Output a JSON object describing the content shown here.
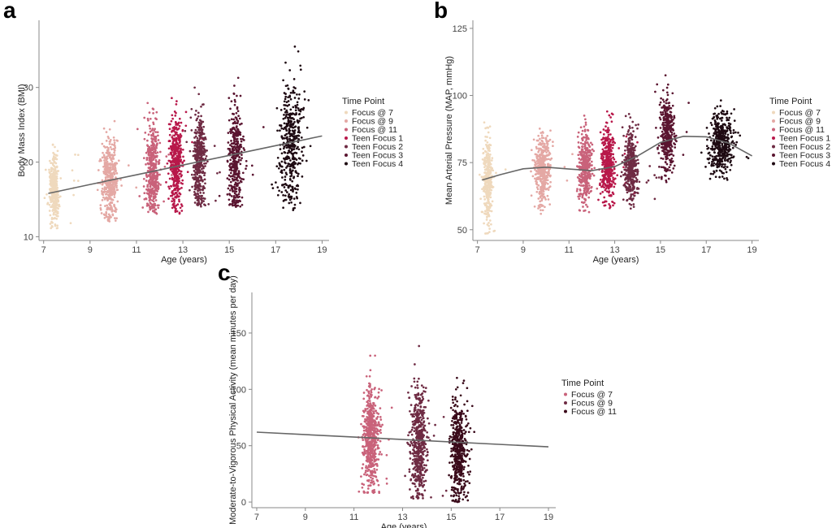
{
  "chart_data": [
    {
      "panel": "a",
      "type": "scatter",
      "xlabel": "Age (years)",
      "ylabel": "Body Mass Index (BMI)",
      "xlim": [
        6.8,
        19.3
      ],
      "ylim": [
        9.5,
        39
      ],
      "xticks": [
        7,
        9,
        11,
        13,
        15,
        17,
        19
      ],
      "yticks": [
        10,
        20,
        30
      ],
      "legend_title": "Time Point",
      "legend_placement": "right",
      "series": [
        {
          "name": "Focus @ 7",
          "color": "#efd9bd",
          "x_center": 7.45,
          "x_spread": 0.18,
          "y_mean": 16.5,
          "y_sd": 2.2,
          "y_min": 11,
          "y_max": 23,
          "n": 360
        },
        {
          "name": "Focus @ 9",
          "color": "#e4a8a4",
          "x_center": 9.85,
          "x_spread": 0.3,
          "y_mean": 17.5,
          "y_sd": 2.6,
          "y_min": 12,
          "y_max": 26,
          "n": 420
        },
        {
          "name": "Focus @ 11",
          "color": "#c9627a",
          "x_center": 11.7,
          "x_spread": 0.25,
          "y_mean": 19,
          "y_sd": 3.1,
          "y_min": 13,
          "y_max": 32,
          "n": 420
        },
        {
          "name": "Teen Focus 1",
          "color": "#b8184a",
          "x_center": 12.7,
          "x_spread": 0.25,
          "y_mean": 19.5,
          "y_sd": 3.2,
          "y_min": 13,
          "y_max": 32,
          "n": 420
        },
        {
          "name": "Teen Focus 2",
          "color": "#6e2b43",
          "x_center": 13.7,
          "x_spread": 0.25,
          "y_mean": 20,
          "y_sd": 3.4,
          "y_min": 14,
          "y_max": 34,
          "n": 380
        },
        {
          "name": "Teen Focus 3",
          "color": "#5a1530",
          "x_center": 15.25,
          "x_spread": 0.28,
          "y_mean": 20.5,
          "y_sd": 3.6,
          "y_min": 14,
          "y_max": 38.5,
          "n": 380
        },
        {
          "name": "Teen Focus 4",
          "color": "#1e0a12",
          "x_center": 17.65,
          "x_spread": 0.45,
          "y_mean": 22.5,
          "y_sd": 4.2,
          "y_min": 13.5,
          "y_max": 38,
          "n": 420
        }
      ],
      "trend": {
        "x": [
          7.2,
          9,
          11,
          13,
          15,
          17,
          19
        ],
        "y": [
          15.8,
          17.0,
          18.3,
          19.6,
          20.9,
          22.2,
          23.5
        ]
      }
    },
    {
      "panel": "b",
      "type": "scatter",
      "xlabel": "Age (years)",
      "ylabel": "Mean Arterial Pressure (MAP, mmHg)",
      "xlim": [
        6.8,
        19.3
      ],
      "ylim": [
        46,
        128
      ],
      "xticks": [
        7,
        9,
        11,
        13,
        15,
        17,
        19
      ],
      "yticks": [
        50,
        75,
        100,
        125
      ],
      "legend_title": "Time Point",
      "legend_placement": "right",
      "series": [
        {
          "name": "Focus @ 7",
          "color": "#efd9bd",
          "x_center": 7.45,
          "x_spread": 0.18,
          "y_mean": 68,
          "y_sd": 8,
          "y_min": 48,
          "y_max": 90,
          "n": 360
        },
        {
          "name": "Focus @ 9",
          "color": "#e4a8a4",
          "x_center": 9.85,
          "x_spread": 0.3,
          "y_mean": 73,
          "y_sd": 6.5,
          "y_min": 55,
          "y_max": 95,
          "n": 420
        },
        {
          "name": "Focus @ 11",
          "color": "#c9627a",
          "x_center": 11.7,
          "x_spread": 0.25,
          "y_mean": 73,
          "y_sd": 6.5,
          "y_min": 56,
          "y_max": 95,
          "n": 420
        },
        {
          "name": "Teen Focus 1",
          "color": "#b8184a",
          "x_center": 12.7,
          "x_spread": 0.25,
          "y_mean": 74,
          "y_sd": 6.5,
          "y_min": 58,
          "y_max": 104,
          "n": 420
        },
        {
          "name": "Teen Focus 2",
          "color": "#6e2b43",
          "x_center": 13.7,
          "x_spread": 0.25,
          "y_mean": 74,
          "y_sd": 6.5,
          "y_min": 55,
          "y_max": 94,
          "n": 380
        },
        {
          "name": "Teen Focus 3",
          "color": "#5a1530",
          "x_center": 15.3,
          "x_spread": 0.28,
          "y_mean": 86,
          "y_sd": 7,
          "y_min": 62,
          "y_max": 109,
          "n": 380
        },
        {
          "name": "Teen Focus 4",
          "color": "#1e0a12",
          "x_center": 17.65,
          "x_spread": 0.45,
          "y_mean": 82,
          "y_sd": 6,
          "y_min": 64,
          "y_max": 127,
          "n": 420
        }
      ],
      "trend": {
        "x": [
          7.2,
          8,
          9,
          10,
          11,
          12,
          13,
          14,
          15,
          16,
          17,
          18,
          19
        ],
        "y": [
          68.5,
          70.5,
          72.7,
          73.3,
          72.6,
          72.0,
          73.5,
          77.5,
          82.5,
          84.8,
          84.6,
          82.2,
          77.5
        ]
      }
    },
    {
      "panel": "c",
      "type": "scatter",
      "xlabel": "Age (years)",
      "ylabel": "Moderate-to-Vigorous Physical Activity (mean minutes per day)",
      "xlim": [
        6.8,
        19.3
      ],
      "ylim": [
        -5,
        186
      ],
      "xticks": [
        7,
        9,
        11,
        13,
        15,
        17,
        19
      ],
      "yticks": [
        0,
        50,
        100,
        150
      ],
      "legend_title": "Time Point",
      "legend_placement": "right",
      "series": [
        {
          "name": "Focus @ 7",
          "color": "#c9627a",
          "x_center": 11.7,
          "x_spread": 0.28,
          "y_mean": 57,
          "y_sd": 22,
          "y_min": 8,
          "y_max": 170,
          "n": 560
        },
        {
          "name": "Focus @ 9",
          "color": "#6e2b43",
          "x_center": 13.65,
          "x_spread": 0.3,
          "y_mean": 52,
          "y_sd": 24,
          "y_min": 3,
          "y_max": 177,
          "n": 520
        },
        {
          "name": "Focus @ 11",
          "color": "#3a0a1a",
          "x_center": 15.3,
          "x_spread": 0.32,
          "y_mean": 48,
          "y_sd": 24,
          "y_min": 0,
          "y_max": 150,
          "n": 480
        }
      ],
      "trend": {
        "x": [
          7,
          19
        ],
        "y": [
          62,
          49
        ]
      }
    }
  ]
}
